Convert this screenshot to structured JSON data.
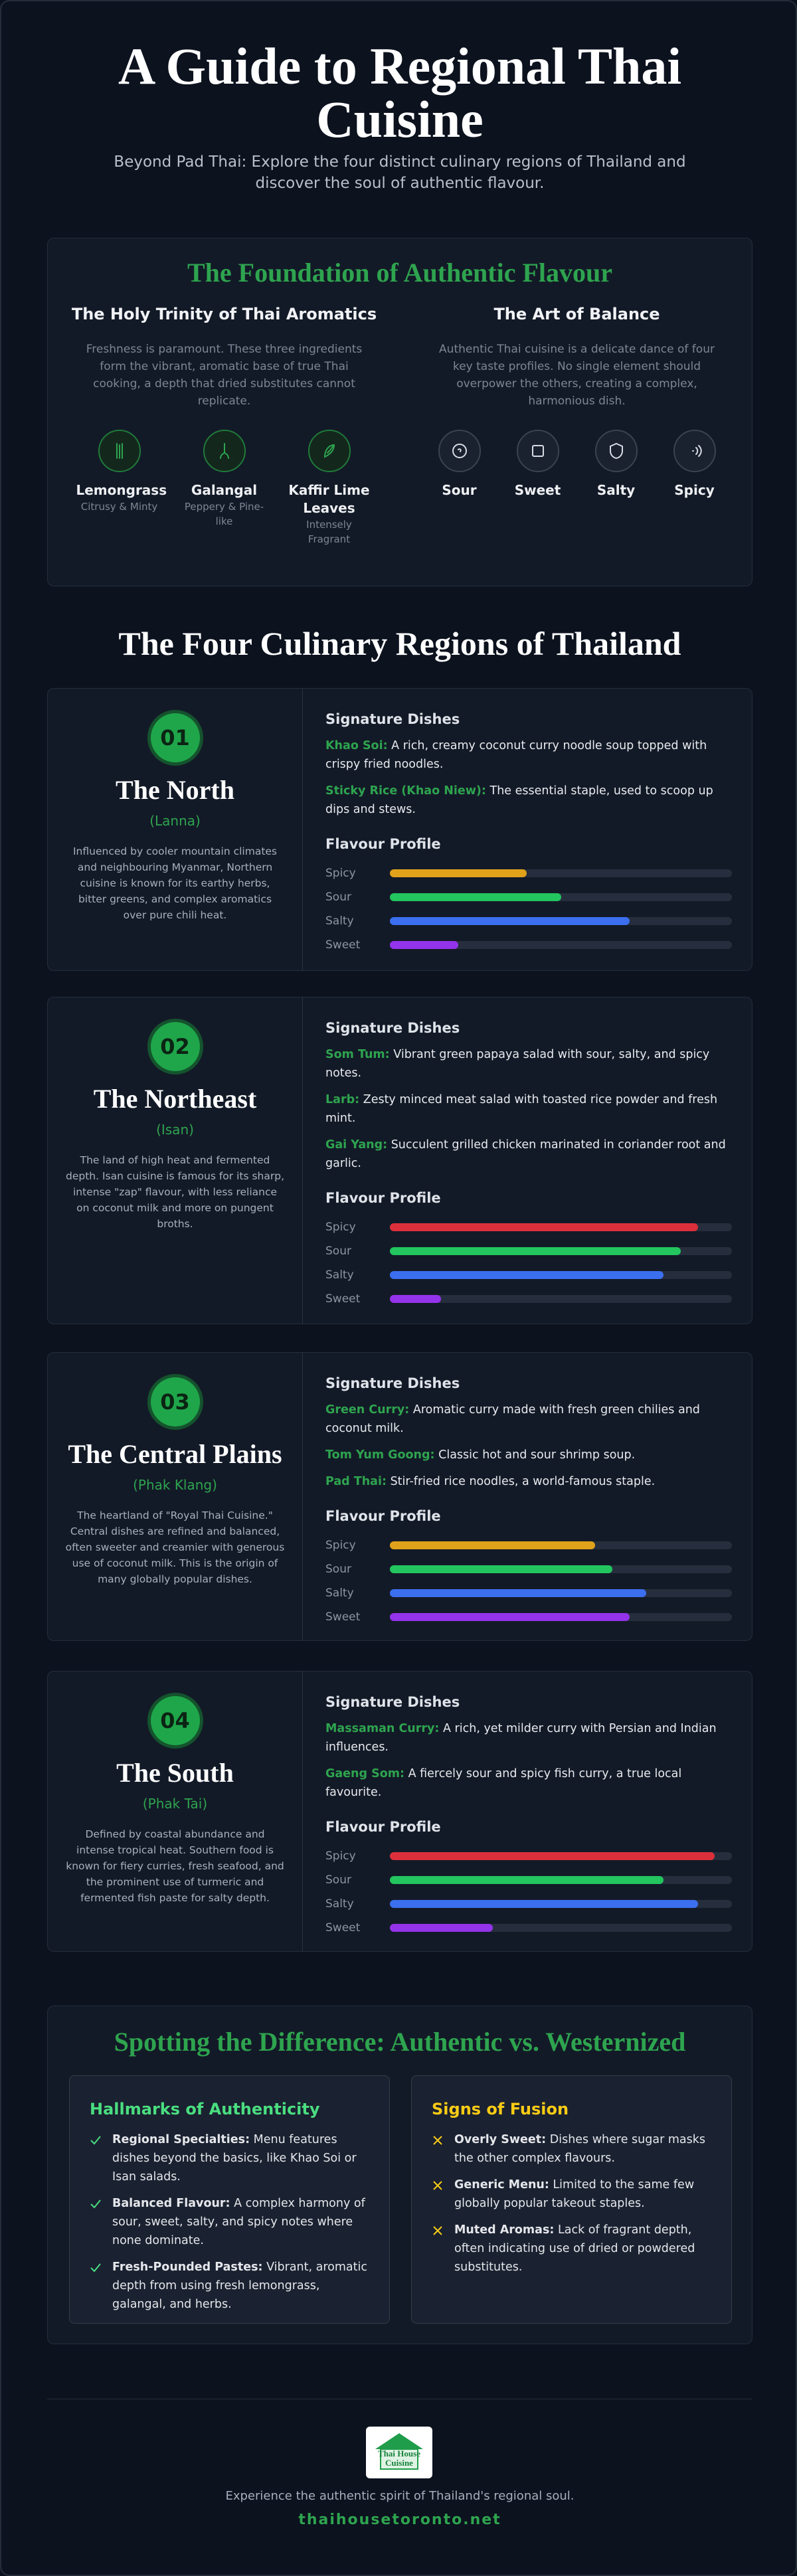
{
  "header": {
    "title": "A Guide to Regional Thai Cuisine",
    "subtitle": "Beyond Pad Thai: Explore the four distinct culinary regions of Thailand and discover the soul of authentic flavour."
  },
  "foundation": {
    "title": "The Foundation of Authentic Flavour",
    "trinity": {
      "title": "The Holy Trinity of Thai Aromatics",
      "text": "Freshness is paramount. These three ingredients form the vibrant, aromatic base of true Thai cooking, a depth that dried substitutes cannot replicate.",
      "items": [
        {
          "name": "Lemongrass",
          "note": "Citrusy & Minty"
        },
        {
          "name": "Galangal",
          "note": "Peppery & Pine-like"
        },
        {
          "name": "Kaffir Lime Leaves",
          "note": "Intensely Fragrant"
        }
      ]
    },
    "balance": {
      "title": "The Art of Balance",
      "text": "Authentic Thai cuisine is a delicate dance of four key taste profiles. No single element should overpower the others, creating a complex, harmonious dish.",
      "items": [
        "Sour",
        "Sweet",
        "Salty",
        "Spicy"
      ]
    }
  },
  "regions_title": "The Four Culinary Regions of Thailand",
  "labels": {
    "dishes": "Signature Dishes",
    "profile": "Flavour Profile"
  },
  "regions": [
    {
      "number": "01",
      "name": "The North",
      "local": "(Lanna)",
      "description": "Influenced by cooler mountain climates and neighbouring Myanmar, Northern cuisine is known for its earthy herbs, bitter greens, and complex aromatics over pure chili heat.",
      "dishes": [
        {
          "name": "Khao Soi:",
          "text": "A rich, creamy coconut curry noodle soup topped with crispy fried noodles."
        },
        {
          "name": "Sticky Rice (Khao Niew):",
          "text": "The essential staple, used to scoop up dips and stews."
        }
      ],
      "flavours": [
        {
          "name": "Spicy",
          "value": 40,
          "color": "#e0a21a"
        },
        {
          "name": "Sour",
          "value": 50,
          "color": "#22c55e"
        },
        {
          "name": "Salty",
          "value": 70,
          "color": "#3b6ff0"
        },
        {
          "name": "Sweet",
          "value": 20,
          "color": "#9333ea"
        }
      ]
    },
    {
      "number": "02",
      "name": "The Northeast",
      "local": "(Isan)",
      "description": "The land of high heat and fermented depth. Isan cuisine is famous for its sharp, intense \"zap\" flavour, with less reliance on coconut milk and more on pungent broths.",
      "dishes": [
        {
          "name": "Som Tum:",
          "text": "Vibrant green papaya salad with sour, salty, and spicy notes."
        },
        {
          "name": "Larb:",
          "text": "Zesty minced meat salad with toasted rice powder and fresh mint."
        },
        {
          "name": "Gai Yang:",
          "text": "Succulent grilled chicken marinated in coriander root and garlic."
        }
      ],
      "flavours": [
        {
          "name": "Spicy",
          "value": 90,
          "color": "#dc2f3c"
        },
        {
          "name": "Sour",
          "value": 85,
          "color": "#22c55e"
        },
        {
          "name": "Salty",
          "value": 80,
          "color": "#3b6ff0"
        },
        {
          "name": "Sweet",
          "value": 15,
          "color": "#9333ea"
        }
      ]
    },
    {
      "number": "03",
      "name": "The Central Plains",
      "local": "(Phak Klang)",
      "description": "The heartland of \"Royal Thai Cuisine.\" Central dishes are refined and balanced, often sweeter and creamier with generous use of coconut milk. This is the origin of many globally popular dishes.",
      "dishes": [
        {
          "name": "Green Curry:",
          "text": "Aromatic curry made with fresh green chilies and coconut milk."
        },
        {
          "name": "Tom Yum Goong:",
          "text": "Classic hot and sour shrimp soup."
        },
        {
          "name": "Pad Thai:",
          "text": "Stir-fried rice noodles, a world-famous staple."
        }
      ],
      "flavours": [
        {
          "name": "Spicy",
          "value": 60,
          "color": "#e0a21a"
        },
        {
          "name": "Sour",
          "value": 65,
          "color": "#22c55e"
        },
        {
          "name": "Salty",
          "value": 75,
          "color": "#3b6ff0"
        },
        {
          "name": "Sweet",
          "value": 70,
          "color": "#9333ea"
        }
      ]
    },
    {
      "number": "04",
      "name": "The South",
      "local": "(Phak Tai)",
      "description": "Defined by coastal abundance and intense tropical heat. Southern food is known for fiery curries, fresh seafood, and the prominent use of turmeric and fermented fish paste for salty depth.",
      "dishes": [
        {
          "name": "Massaman Curry:",
          "text": "A rich, yet milder curry with Persian and Indian influences."
        },
        {
          "name": "Gaeng Som:",
          "text": "A fiercely sour and spicy fish curry, a true local favourite."
        }
      ],
      "flavours": [
        {
          "name": "Spicy",
          "value": 95,
          "color": "#dc2f3c"
        },
        {
          "name": "Sour",
          "value": 80,
          "color": "#22c55e"
        },
        {
          "name": "Salty",
          "value": 90,
          "color": "#3b6ff0"
        },
        {
          "name": "Sweet",
          "value": 30,
          "color": "#9333ea"
        }
      ]
    }
  ],
  "comparison": {
    "title": "Spotting the Difference: Authentic vs. Westernized",
    "authentic": {
      "title": "Hallmarks of Authenticity",
      "items": [
        {
          "label": "Regional Specialties:",
          "text": "Menu features dishes beyond the basics, like Khao Soi or Isan salads."
        },
        {
          "label": "Balanced Flavour:",
          "text": "A complex harmony of sour, sweet, salty, and spicy notes where none dominate."
        },
        {
          "label": "Fresh-Pounded Pastes:",
          "text": "Vibrant, aromatic depth from using fresh lemongrass, galangal, and herbs."
        }
      ]
    },
    "fusion": {
      "title": "Signs of Fusion",
      "items": [
        {
          "label": "Overly Sweet:",
          "text": "Dishes where sugar masks the other complex flavours."
        },
        {
          "label": "Generic Menu:",
          "text": "Limited to the same few globally popular takeout staples."
        },
        {
          "label": "Muted Aromas:",
          "text": "Lack of fragrant depth, often indicating use of dried or powdered substitutes."
        }
      ]
    }
  },
  "footer": {
    "logo": [
      "Thai House",
      "Cuisine"
    ],
    "tagline": "Experience the authentic spirit of Thailand's regional soul.",
    "url": "thaihousetoronto.net"
  }
}
